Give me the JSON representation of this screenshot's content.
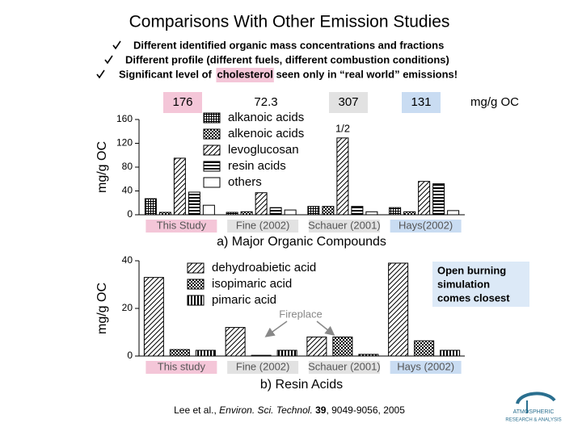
{
  "title": "Comparisons With Other Emission Studies",
  "bullets": [
    [
      "Different identified organic mass concentrations and fractions"
    ],
    [
      "Different profile (different fuels, different combustion conditions)"
    ],
    [
      "Significant level of ",
      "cholesterol",
      " seen only in “real world” emissions!"
    ]
  ],
  "fireplace_label": "Fireplace",
  "callout": [
    "Open burning",
    "simulation",
    "comes closest"
  ],
  "citation": [
    "Lee et al., ",
    "Environ. Sci. Technol. ",
    "39",
    ", 9049-9056, 2005"
  ],
  "logo": [
    "ATMOSPHERIC",
    "RESEARCH & ANALYSIS"
  ],
  "chart_data": [
    {
      "type": "bar",
      "xlabel": "a) Major Organic Compounds",
      "ylabel": "mg/g OC",
      "categories": [
        "This Study",
        "Fine (2002)",
        "Schauer (2001)",
        "Hays(2002)"
      ],
      "totals": [
        176,
        72.3,
        307,
        131
      ],
      "totals_unit": "mg/g OC",
      "annotation": "1/2",
      "series": [
        {
          "name": "alkanoic acids",
          "color": "#000000",
          "pattern": "grid",
          "values": [
            27,
            4,
            14,
            12
          ]
        },
        {
          "name": "alkenoic acids",
          "color": "#000000",
          "pattern": "checker",
          "values": [
            4,
            5,
            14,
            5
          ]
        },
        {
          "name": "levoglucosan",
          "color": "#000000",
          "pattern": "diagonal",
          "values": [
            95,
            37,
            129,
            56
          ]
        },
        {
          "name": "resin acids",
          "color": "#000000",
          "pattern": "hstripes",
          "values": [
            38,
            12,
            14,
            52
          ]
        },
        {
          "name": "others",
          "color": "#000000",
          "pattern": "white",
          "values": [
            16,
            8,
            5,
            7
          ]
        }
      ],
      "ylim": [
        0,
        160
      ],
      "yticks": [
        0,
        40,
        80,
        120,
        160
      ]
    },
    {
      "type": "bar",
      "xlabel": "b) Resin Acids",
      "ylabel": "mg/g OC",
      "categories": [
        "This study",
        "Fine (2002)",
        "Schauer (2001)",
        "Hays (2002)"
      ],
      "series": [
        {
          "name": "dehydroabietic acid",
          "color": "#000000",
          "pattern": "diagonal",
          "values": [
            33,
            12,
            8,
            39
          ]
        },
        {
          "name": "isopimaric acid",
          "color": "#000000",
          "pattern": "checker",
          "values": [
            2.7,
            0.3,
            8,
            6.4
          ]
        },
        {
          "name": "pimaric acid",
          "color": "#000000",
          "pattern": "vstripes",
          "values": [
            2.4,
            2.4,
            0.7,
            2.4
          ]
        }
      ],
      "ylim": [
        0,
        40
      ],
      "yticks": [
        0,
        20,
        40
      ]
    }
  ]
}
